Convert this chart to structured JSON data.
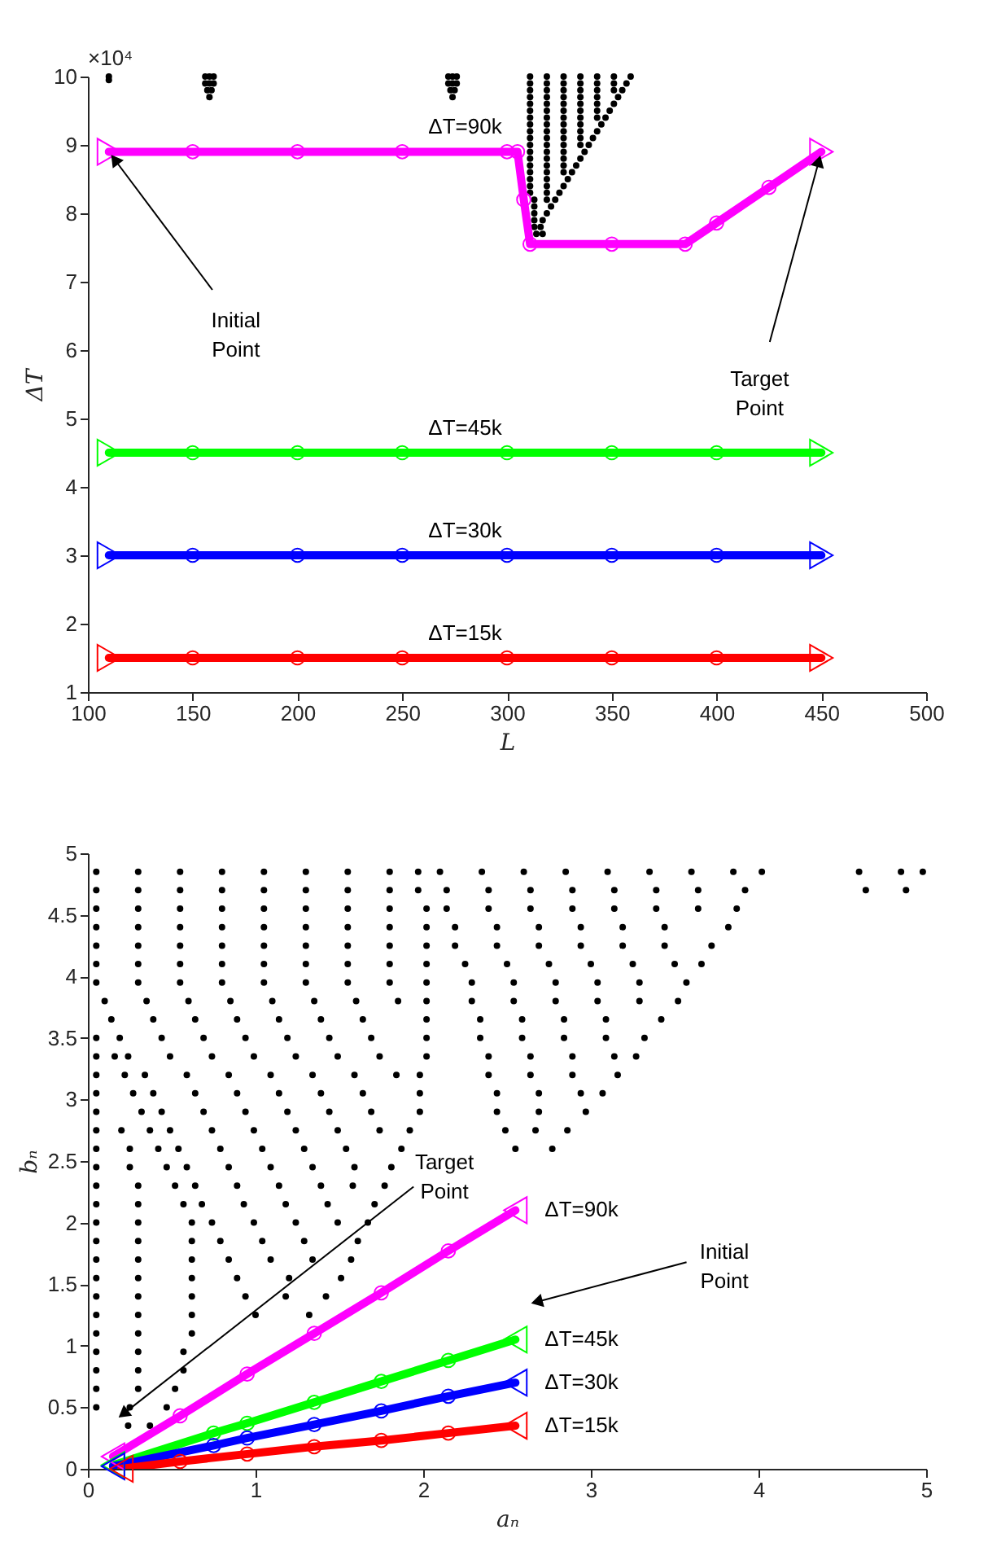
{
  "chart_data": [
    {
      "type": "scatter",
      "xlabel": "L",
      "ylabel": "ΔT",
      "xlim": [
        100,
        500
      ],
      "xticks": [
        100,
        150,
        200,
        250,
        300,
        350,
        400,
        450,
        500
      ],
      "ylim": [
        1,
        10
      ],
      "yticks": [
        1,
        2,
        3,
        4,
        5,
        6,
        7,
        8,
        9,
        10
      ],
      "annotations": [
        "×10⁴",
        {
          "text": "Initial Point",
          "x": 110,
          "y": 8.9
        },
        {
          "text": "Target Point",
          "x": 450,
          "y": 8.9
        }
      ],
      "series": [
        {
          "color": "#000000",
          "marker": "circle",
          "x": [
            110,
            110
          ],
          "values": [
            10,
            9.95
          ]
        },
        {
          "color": "#000000",
          "marker": "circle",
          "x": [
            156,
            158,
            160,
            156,
            158,
            160,
            157,
            159,
            158
          ],
          "values": [
            10,
            10,
            10,
            9.9,
            9.9,
            9.9,
            9.8,
            9.8,
            9.7
          ]
        },
        {
          "color": "#000000",
          "marker": "circle",
          "x": [
            272,
            274,
            276,
            272,
            274,
            276,
            273,
            275,
            274
          ],
          "values": [
            10,
            10,
            10,
            9.9,
            9.9,
            9.9,
            9.8,
            9.8,
            9.7
          ]
        },
        {
          "color": "#000000",
          "marker": "circle",
          "x": [
            311,
            319,
            327,
            335,
            343,
            351,
            359
          ],
          "values": [
            10,
            10,
            10,
            10,
            10,
            10,
            10
          ]
        },
        {
          "color": "#000000",
          "marker": "circle",
          "x": [
            311,
            319,
            327,
            335,
            343,
            351,
            357
          ],
          "values": [
            9.9,
            9.9,
            9.9,
            9.9,
            9.9,
            9.9,
            9.9
          ]
        },
        {
          "color": "#000000",
          "marker": "circle",
          "x": [
            311,
            319,
            327,
            335,
            343,
            351,
            355
          ],
          "values": [
            9.8,
            9.8,
            9.8,
            9.8,
            9.8,
            9.8,
            9.8
          ]
        },
        {
          "color": "#000000",
          "marker": "circle",
          "x": [
            311,
            319,
            327,
            335,
            343,
            353
          ],
          "values": [
            9.7,
            9.7,
            9.7,
            9.7,
            9.7,
            9.7
          ]
        },
        {
          "color": "#000000",
          "marker": "circle",
          "x": [
            311,
            319,
            327,
            335,
            343,
            351
          ],
          "values": [
            9.6,
            9.6,
            9.6,
            9.6,
            9.6,
            9.6
          ]
        },
        {
          "color": "#000000",
          "marker": "circle",
          "x": [
            311,
            319,
            327,
            335,
            343,
            349
          ],
          "values": [
            9.5,
            9.5,
            9.5,
            9.5,
            9.5,
            9.5
          ]
        },
        {
          "color": "#000000",
          "marker": "circle",
          "x": [
            311,
            319,
            327,
            335,
            343,
            347
          ],
          "values": [
            9.4,
            9.4,
            9.4,
            9.4,
            9.4,
            9.4
          ]
        },
        {
          "color": "#000000",
          "marker": "circle",
          "x": [
            311,
            319,
            327,
            335,
            345
          ],
          "values": [
            9.3,
            9.3,
            9.3,
            9.3,
            9.3
          ]
        },
        {
          "color": "#000000",
          "marker": "circle",
          "x": [
            311,
            319,
            327,
            335,
            343
          ],
          "values": [
            9.2,
            9.2,
            9.2,
            9.2,
            9.2
          ]
        },
        {
          "color": "#000000",
          "marker": "circle",
          "x": [
            311,
            319,
            327,
            335,
            341
          ],
          "values": [
            9.1,
            9.1,
            9.1,
            9.1,
            9.1
          ]
        },
        {
          "color": "#000000",
          "marker": "circle",
          "x": [
            311,
            319,
            327,
            335,
            339
          ],
          "values": [
            9,
            9,
            9,
            9,
            9
          ]
        },
        {
          "color": "#000000",
          "marker": "circle",
          "x": [
            311,
            319,
            327,
            337
          ],
          "values": [
            8.9,
            8.9,
            8.9,
            8.9
          ]
        },
        {
          "color": "#000000",
          "marker": "circle",
          "x": [
            311,
            319,
            327,
            335
          ],
          "values": [
            8.8,
            8.8,
            8.8,
            8.8
          ]
        },
        {
          "color": "#000000",
          "marker": "circle",
          "x": [
            311,
            319,
            327,
            333
          ],
          "values": [
            8.7,
            8.7,
            8.7,
            8.7
          ]
        },
        {
          "color": "#000000",
          "marker": "circle",
          "x": [
            311,
            319,
            327,
            331
          ],
          "values": [
            8.6,
            8.6,
            8.6,
            8.6
          ]
        },
        {
          "color": "#000000",
          "marker": "circle",
          "x": [
            311,
            319,
            329
          ],
          "values": [
            8.5,
            8.5,
            8.5
          ]
        },
        {
          "color": "#000000",
          "marker": "circle",
          "x": [
            311,
            319,
            327
          ],
          "values": [
            8.4,
            8.4,
            8.4
          ]
        },
        {
          "color": "#000000",
          "marker": "circle",
          "x": [
            311,
            319,
            325
          ],
          "values": [
            8.3,
            8.3,
            8.3
          ]
        },
        {
          "color": "#000000",
          "marker": "circle",
          "x": [
            313,
            319,
            323
          ],
          "values": [
            8.2,
            8.2,
            8.2
          ]
        },
        {
          "color": "#000000",
          "marker": "circle",
          "x": [
            313,
            321
          ],
          "values": [
            8.1,
            8.1
          ]
        },
        {
          "color": "#000000",
          "marker": "circle",
          "x": [
            313,
            319
          ],
          "values": [
            8,
            8
          ]
        },
        {
          "color": "#000000",
          "marker": "circle",
          "x": [
            313,
            317
          ],
          "values": [
            7.9,
            7.9
          ]
        },
        {
          "color": "#000000",
          "marker": "circle",
          "x": [
            313,
            316
          ],
          "values": [
            7.8,
            7.8
          ]
        },
        {
          "color": "#000000",
          "marker": "circle",
          "x": [
            314,
            317
          ],
          "values": [
            7.7,
            7.7
          ]
        },
        {
          "name": "ΔT=90k",
          "type": "line",
          "color": "#ff00ff",
          "marker": "circle",
          "x": [
            110,
            150,
            200,
            250,
            300,
            305,
            308,
            311,
            350,
            385,
            400,
            425,
            450
          ],
          "values": [
            8.9,
            8.9,
            8.9,
            8.9,
            8.9,
            8.9,
            8.2,
            7.55,
            7.55,
            7.55,
            7.86,
            8.38,
            8.9
          ]
        },
        {
          "name": "ΔT=45k",
          "type": "line",
          "color": "#00ff00",
          "marker": "circle",
          "x": [
            110,
            150,
            200,
            250,
            300,
            350,
            400,
            450
          ],
          "values": [
            4.5,
            4.5,
            4.5,
            4.5,
            4.5,
            4.5,
            4.5,
            4.5
          ]
        },
        {
          "name": "ΔT=30k",
          "type": "line",
          "color": "#0000ff",
          "marker": "circle",
          "x": [
            110,
            150,
            200,
            250,
            300,
            350,
            400,
            450
          ],
          "values": [
            3,
            3,
            3,
            3,
            3,
            3,
            3,
            3
          ]
        },
        {
          "name": "ΔT=15k",
          "type": "line",
          "color": "#ff0000",
          "marker": "circle",
          "x": [
            110,
            150,
            200,
            250,
            300,
            350,
            400,
            450
          ],
          "values": [
            1.5,
            1.5,
            1.5,
            1.5,
            1.5,
            1.5,
            1.5,
            1.5
          ]
        },
        {
          "color": "#ff00ff",
          "marker": "triangle",
          "x": [
            110,
            450
          ],
          "values": [
            8.9,
            8.9
          ]
        },
        {
          "color": "#00ff00",
          "marker": "triangle",
          "x": [
            110,
            450
          ],
          "values": [
            4.5,
            4.5
          ]
        },
        {
          "color": "#0000ff",
          "marker": "triangle",
          "x": [
            110,
            450
          ],
          "values": [
            3,
            3
          ]
        },
        {
          "color": "#ff0000",
          "marker": "triangle",
          "x": [
            110,
            450
          ],
          "values": [
            1.5,
            1.5
          ]
        }
      ]
    },
    {
      "type": "scatter",
      "xlabel": "aₙ",
      "ylabel": "bₙ",
      "xlim": [
        0,
        5
      ],
      "xticks": [
        0,
        1,
        2,
        3,
        4,
        5
      ],
      "ylim": [
        0,
        5
      ],
      "yticks": [
        0,
        0.5,
        1,
        1.5,
        2,
        2.5,
        3,
        3.5,
        4,
        4.5,
        5
      ],
      "annotations": [
        "Target Point",
        "Initial Point"
      ],
      "series": [
        {
          "color": "#000000",
          "marker": "circle",
          "x": [
            0.05,
            0.3,
            0.55,
            0.8,
            1.05,
            1.3,
            1.55,
            1.8,
            1.97,
            2.1,
            2.35,
            2.6,
            2.85,
            3.1,
            3.35,
            3.6,
            3.85,
            4.02,
            4.6,
            4.85,
            4.98
          ],
          "values": [
            4.85,
            4.85,
            4.85,
            4.85,
            4.85,
            4.85,
            4.85,
            4.85,
            4.85,
            4.85,
            4.85,
            4.85,
            4.85,
            4.85,
            4.85,
            4.85,
            4.85,
            4.85,
            4.85,
            4.85,
            4.85
          ]
        },
        {
          "color": "#000000",
          "marker": "circle",
          "x": [
            0.05,
            0.3,
            0.55,
            0.8,
            1.05,
            1.3,
            1.55,
            1.8,
            1.97,
            2.14,
            2.39,
            2.64,
            2.89,
            3.14,
            3.39,
            3.64,
            3.92,
            4.64,
            4.88
          ],
          "values": [
            4.7,
            4.7,
            4.7,
            4.7,
            4.7,
            4.7,
            4.7,
            4.7,
            4.7,
            4.7,
            4.7,
            4.7,
            4.7,
            4.7,
            4.7,
            4.7,
            4.7,
            4.7,
            4.7
          ]
        },
        {
          "color": "#000000",
          "marker": "circle",
          "x": [
            0.05,
            0.3,
            0.55,
            0.8,
            1.05,
            1.3,
            1.55,
            1.8,
            2.02,
            2.14,
            2.39,
            2.64,
            2.89,
            3.14,
            3.39,
            3.64,
            3.87
          ],
          "values": [
            4.55,
            4.55,
            4.55,
            4.55,
            4.55,
            4.55,
            4.55,
            4.55,
            4.55,
            4.55,
            4.55,
            4.55,
            4.55,
            4.55,
            4.55,
            4.55,
            4.55
          ]
        },
        {
          "color": "#000000",
          "marker": "circle",
          "x": [
            0.05,
            0.3,
            0.55,
            0.8,
            1.05,
            1.3,
            1.55,
            1.8,
            2.02,
            2.19,
            2.44,
            2.69,
            2.94,
            3.19,
            3.44,
            3.82
          ],
          "values": [
            4.4,
            4.4,
            4.4,
            4.4,
            4.4,
            4.4,
            4.4,
            4.4,
            4.4,
            4.4,
            4.4,
            4.4,
            4.4,
            4.4,
            4.4,
            4.4
          ]
        },
        {
          "color": "#000000",
          "marker": "circle",
          "x": [
            0.05,
            0.3,
            0.55,
            0.8,
            1.05,
            1.3,
            1.55,
            1.8,
            2.02,
            2.19,
            2.44,
            2.69,
            2.94,
            3.19,
            3.44,
            3.72
          ],
          "values": [
            4.25,
            4.25,
            4.25,
            4.25,
            4.25,
            4.25,
            4.25,
            4.25,
            4.25,
            4.25,
            4.25,
            4.25,
            4.25,
            4.25,
            4.25,
            4.25
          ]
        },
        {
          "color": "#000000",
          "marker": "circle",
          "x": [
            0.05,
            0.3,
            0.55,
            0.8,
            1.05,
            1.3,
            1.55,
            1.8,
            2.02,
            2.25,
            2.5,
            2.75,
            3.0,
            3.25,
            3.5,
            3.66
          ],
          "values": [
            4.1,
            4.1,
            4.1,
            4.1,
            4.1,
            4.1,
            4.1,
            4.1,
            4.1,
            4.1,
            4.1,
            4.1,
            4.1,
            4.1,
            4.1,
            4.1
          ]
        },
        {
          "color": "#000000",
          "marker": "circle",
          "x": [
            0.05,
            0.3,
            0.55,
            0.8,
            1.05,
            1.3,
            1.55,
            1.8,
            2.02,
            2.29,
            2.54,
            2.79,
            3.04,
            3.29,
            3.57
          ],
          "values": [
            3.95,
            3.95,
            3.95,
            3.95,
            3.95,
            3.95,
            3.95,
            3.95,
            3.95,
            3.95,
            3.95,
            3.95,
            3.95,
            3.95,
            3.95
          ]
        },
        {
          "color": "#000000",
          "marker": "circle",
          "x": [
            0.1,
            0.35,
            0.6,
            0.85,
            1.1,
            1.35,
            1.6,
            1.85,
            2.02,
            2.29,
            2.54,
            2.79,
            3.04,
            3.29,
            3.52
          ],
          "values": [
            3.8,
            3.8,
            3.8,
            3.8,
            3.8,
            3.8,
            3.8,
            3.8,
            3.8,
            3.8,
            3.8,
            3.8,
            3.8,
            3.8,
            3.8
          ]
        },
        {
          "color": "#000000",
          "marker": "circle",
          "x": [
            0.14,
            0.39,
            0.64,
            0.89,
            1.14,
            1.39,
            1.64,
            2.02,
            2.34,
            2.59,
            2.84,
            3.09,
            3.42
          ],
          "values": [
            3.65,
            3.65,
            3.65,
            3.65,
            3.65,
            3.65,
            3.65,
            3.65,
            3.65,
            3.65,
            3.65,
            3.65,
            3.65
          ]
        },
        {
          "color": "#000000",
          "marker": "circle",
          "x": [
            0.05,
            0.19,
            0.44,
            0.69,
            0.94,
            1.19,
            1.44,
            1.69,
            2.02,
            2.34,
            2.59,
            2.84,
            3.09,
            3.32
          ],
          "values": [
            3.5,
            3.5,
            3.5,
            3.5,
            3.5,
            3.5,
            3.5,
            3.5,
            3.5,
            3.5,
            3.5,
            3.5,
            3.5,
            3.5
          ]
        },
        {
          "color": "#000000",
          "marker": "circle",
          "x": [
            0.05,
            0.16,
            0.24,
            0.49,
            0.74,
            0.99,
            1.24,
            1.49,
            1.74,
            2.02,
            2.39,
            2.64,
            2.89,
            3.14,
            3.27
          ],
          "values": [
            3.35,
            3.35,
            3.35,
            3.35,
            3.35,
            3.35,
            3.35,
            3.35,
            3.35,
            3.35,
            3.35,
            3.35,
            3.35,
            3.35,
            3.35
          ]
        },
        {
          "color": "#000000",
          "marker": "circle",
          "x": [
            0.05,
            0.22,
            0.34,
            0.59,
            0.84,
            1.09,
            1.34,
            1.59,
            1.84,
            1.98,
            2.39,
            2.64,
            2.89,
            3.16
          ],
          "values": [
            3.2,
            3.2,
            3.2,
            3.2,
            3.2,
            3.2,
            3.2,
            3.2,
            3.2,
            3.2,
            3.2,
            3.2,
            3.2,
            3.2
          ]
        },
        {
          "color": "#000000",
          "marker": "circle",
          "x": [
            0.05,
            0.27,
            0.39,
            0.64,
            0.89,
            1.14,
            1.39,
            1.64,
            1.98,
            2.44,
            2.69,
            2.94,
            3.07
          ],
          "values": [
            3.05,
            3.05,
            3.05,
            3.05,
            3.05,
            3.05,
            3.05,
            3.05,
            3.05,
            3.05,
            3.05,
            3.05,
            3.05
          ]
        },
        {
          "color": "#000000",
          "marker": "circle",
          "x": [
            0.05,
            0.32,
            0.44,
            0.69,
            0.94,
            1.19,
            1.44,
            1.69,
            1.98,
            2.44,
            2.69,
            2.97
          ],
          "values": [
            2.9,
            2.9,
            2.9,
            2.9,
            2.9,
            2.9,
            2.9,
            2.9,
            2.9,
            2.9,
            2.9,
            2.9
          ]
        },
        {
          "color": "#000000",
          "marker": "circle",
          "x": [
            0.05,
            0.2,
            0.37,
            0.49,
            0.74,
            0.99,
            1.24,
            1.49,
            1.74,
            1.92,
            2.49,
            2.67,
            2.86
          ],
          "values": [
            2.75,
            2.75,
            2.75,
            2.75,
            2.75,
            2.75,
            2.75,
            2.75,
            2.75,
            2.75,
            2.75,
            2.75,
            2.75
          ]
        },
        {
          "color": "#000000",
          "marker": "circle",
          "x": [
            0.05,
            0.25,
            0.42,
            0.54,
            0.79,
            1.04,
            1.29,
            1.54,
            1.87,
            2.55,
            2.77
          ],
          "values": [
            2.6,
            2.6,
            2.6,
            2.6,
            2.6,
            2.6,
            2.6,
            2.6,
            2.6,
            2.6,
            2.6
          ]
        },
        {
          "color": "#000000",
          "marker": "circle",
          "x": [
            0.05,
            0.25,
            0.47,
            0.59,
            0.84,
            1.09,
            1.34,
            1.59,
            1.81
          ],
          "values": [
            2.45,
            2.45,
            2.45,
            2.45,
            2.45,
            2.45,
            2.45,
            2.45,
            2.45
          ]
        },
        {
          "color": "#000000",
          "marker": "circle",
          "x": [
            0.05,
            0.3,
            0.52,
            0.64,
            0.89,
            1.14,
            1.39,
            1.58,
            1.77
          ],
          "values": [
            2.3,
            2.3,
            2.3,
            2.3,
            2.3,
            2.3,
            2.3,
            2.3,
            2.3
          ]
        },
        {
          "color": "#000000",
          "marker": "circle",
          "x": [
            0.05,
            0.3,
            0.57,
            0.68,
            0.93,
            1.18,
            1.43,
            1.71
          ],
          "values": [
            2.15,
            2.15,
            2.15,
            2.15,
            2.15,
            2.15,
            2.15,
            2.15
          ]
        },
        {
          "color": "#000000",
          "marker": "circle",
          "x": [
            0.05,
            0.3,
            0.62,
            0.74,
            0.99,
            1.24,
            1.49,
            1.67
          ],
          "values": [
            2,
            2,
            2,
            2,
            2,
            2,
            2,
            2
          ]
        },
        {
          "color": "#000000",
          "marker": "circle",
          "x": [
            0.05,
            0.3,
            0.62,
            0.79,
            1.04,
            1.29,
            1.61
          ],
          "values": [
            1.85,
            1.85,
            1.85,
            1.85,
            1.85,
            1.85,
            1.85
          ]
        },
        {
          "color": "#000000",
          "marker": "circle",
          "x": [
            0.05,
            0.3,
            0.62,
            0.84,
            1.09,
            1.34,
            1.57
          ],
          "values": [
            1.7,
            1.7,
            1.7,
            1.7,
            1.7,
            1.7,
            1.7
          ]
        },
        {
          "color": "#000000",
          "marker": "circle",
          "x": [
            0.05,
            0.3,
            0.62,
            0.89,
            1.2,
            1.51
          ],
          "values": [
            1.55,
            1.55,
            1.55,
            1.55,
            1.55,
            1.55
          ]
        },
        {
          "color": "#000000",
          "marker": "circle",
          "x": [
            0.05,
            0.3,
            0.62,
            0.94,
            1.18,
            1.42
          ],
          "values": [
            1.4,
            1.4,
            1.4,
            1.4,
            1.4,
            1.4
          ]
        },
        {
          "color": "#000000",
          "marker": "circle",
          "x": [
            0.05,
            0.3,
            0.62,
            1.0,
            1.32
          ],
          "values": [
            1.25,
            1.25,
            1.25,
            1.25,
            1.25
          ]
        },
        {
          "color": "#000000",
          "marker": "circle",
          "x": [
            0.05,
            0.3,
            0.62
          ],
          "values": [
            1.1,
            1.1,
            1.1
          ]
        },
        {
          "color": "#000000",
          "marker": "circle",
          "x": [
            0.05,
            0.3,
            0.57
          ],
          "values": [
            0.95,
            0.95,
            0.95
          ]
        },
        {
          "color": "#000000",
          "marker": "circle",
          "x": [
            0.05,
            0.3,
            0.57
          ],
          "values": [
            0.8,
            0.8,
            0.8
          ]
        },
        {
          "color": "#000000",
          "marker": "circle",
          "x": [
            0.05,
            0.3,
            0.52
          ],
          "values": [
            0.65,
            0.65,
            0.65
          ]
        },
        {
          "color": "#000000",
          "marker": "circle",
          "x": [
            0.05,
            0.25,
            0.47
          ],
          "values": [
            0.5,
            0.5,
            0.5
          ]
        },
        {
          "color": "#000000",
          "marker": "circle",
          "x": [
            0.24,
            0.37
          ],
          "values": [
            0.35,
            0.35
          ]
        },
        {
          "name": "ΔT=90k",
          "type": "line",
          "color": "#ff00ff",
          "marker": "circle",
          "x": [
            0.15,
            0.55,
            0.95,
            1.35,
            1.75,
            2.15,
            2.55
          ],
          "values": [
            0.1,
            0.43,
            0.77,
            1.1,
            1.43,
            1.77,
            2.1
          ]
        },
        {
          "name": "ΔT=45k",
          "type": "line",
          "color": "#00ff00",
          "marker": "circle",
          "x": [
            0.15,
            0.75,
            0.95,
            1.35,
            1.75,
            2.15,
            2.55
          ],
          "values": [
            0.03,
            0.29,
            0.37,
            0.54,
            0.71,
            0.88,
            1.05
          ]
        },
        {
          "name": "ΔT=30k",
          "type": "line",
          "color": "#0000ff",
          "marker": "circle",
          "x": [
            0.15,
            0.75,
            0.95,
            1.35,
            1.75,
            2.15,
            2.55
          ],
          "values": [
            0.02,
            0.19,
            0.25,
            0.36,
            0.47,
            0.59,
            0.7
          ]
        },
        {
          "name": "ΔT=15k",
          "type": "line",
          "color": "#ff0000",
          "marker": "circle",
          "x": [
            0.2,
            0.55,
            0.95,
            1.35,
            1.75,
            2.15,
            2.55
          ],
          "values": [
            0,
            0.06,
            0.12,
            0.18,
            0.23,
            0.29,
            0.35
          ]
        },
        {
          "color": "#ff00ff",
          "marker": "triangle",
          "x": [
            0.15,
            2.55
          ],
          "values": [
            0.1,
            2.1
          ]
        },
        {
          "color": "#00ff00",
          "marker": "triangle",
          "x": [
            0.15,
            2.55
          ],
          "values": [
            0.03,
            1.05
          ]
        },
        {
          "color": "#0000ff",
          "marker": "triangle",
          "x": [
            0.15,
            2.55
          ],
          "values": [
            0.02,
            0.7
          ]
        },
        {
          "color": "#ff0000",
          "marker": "triangle",
          "x": [
            0.2,
            2.55
          ],
          "values": [
            0,
            0.35
          ]
        }
      ]
    }
  ]
}
